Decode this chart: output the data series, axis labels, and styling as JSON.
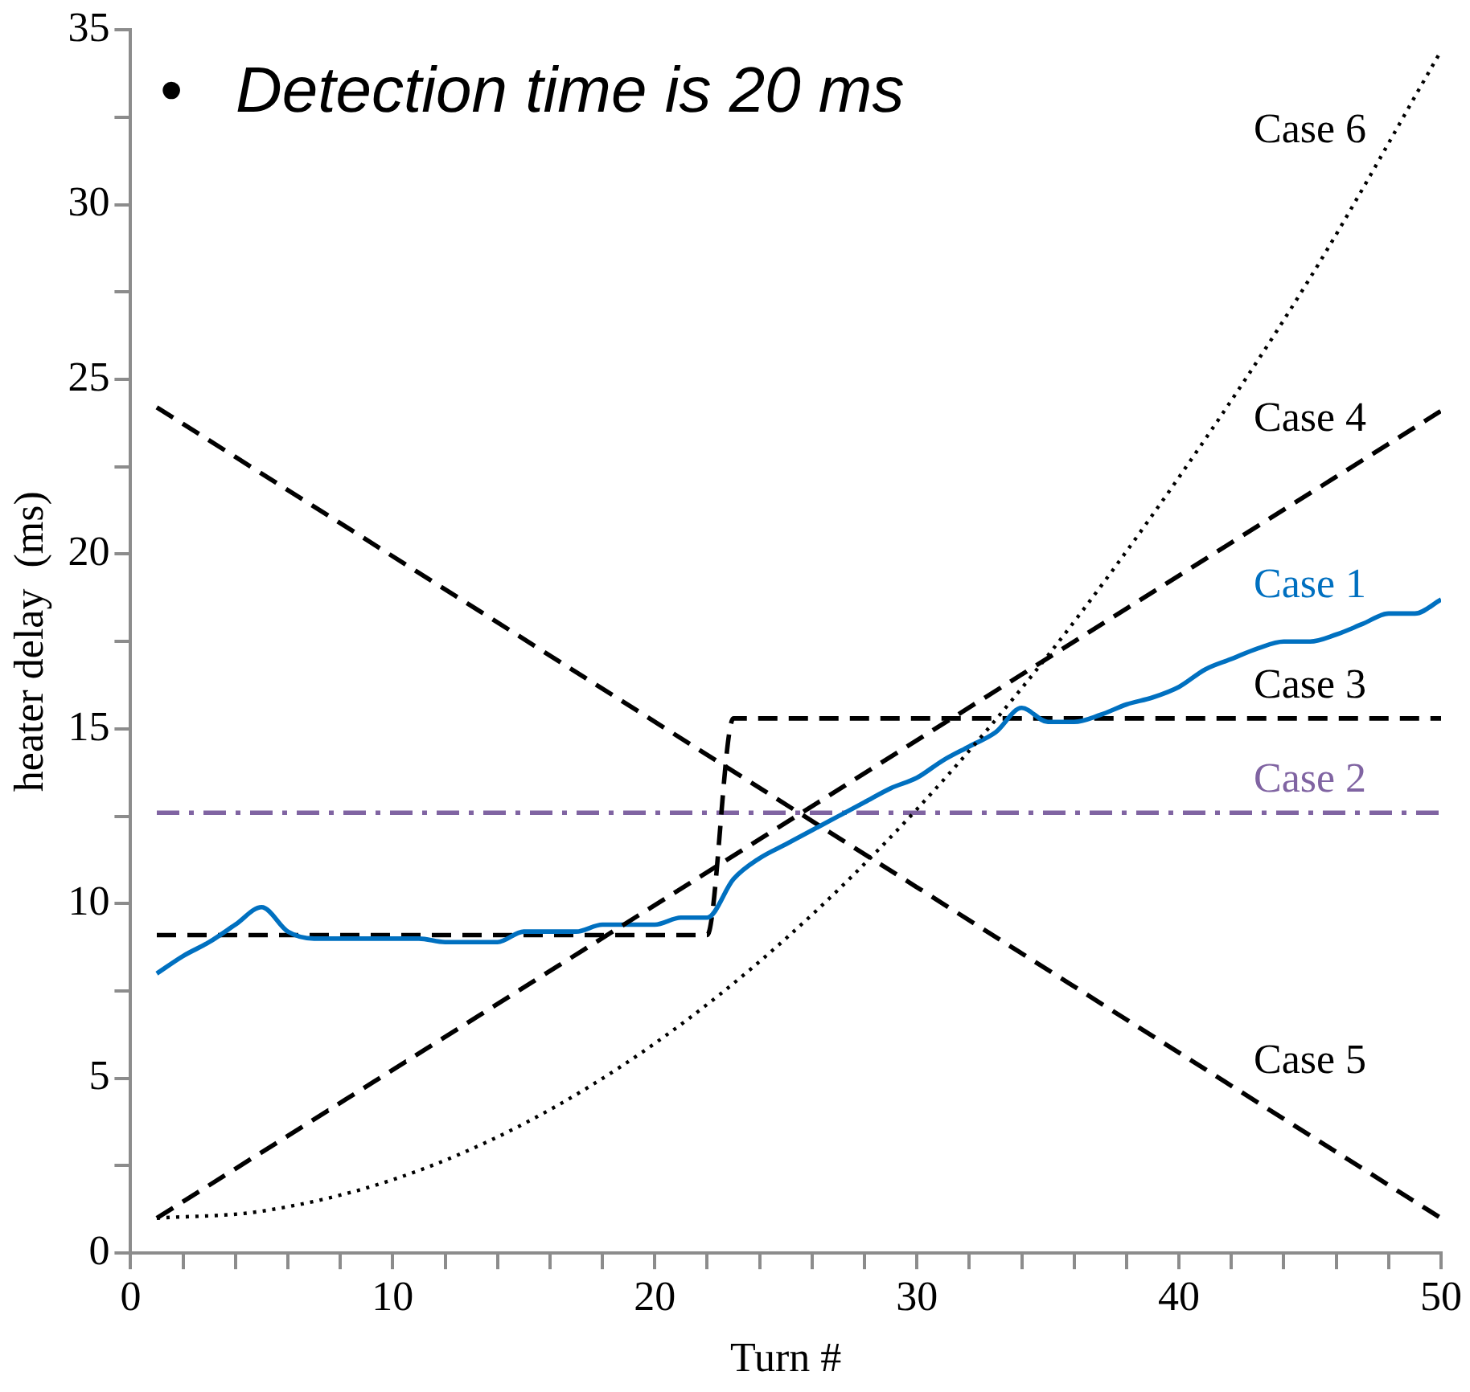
{
  "chart_data": {
    "type": "line",
    "xlabel": "Turn #",
    "ylabel": "heater delay  (ms)",
    "annotations": [
      "•   Detection time is 20 ms"
    ],
    "xlim": [
      0,
      50
    ],
    "xticks": [
      0,
      {
        "value": 2,
        "label": null
      },
      {
        "value": 4,
        "label": null
      },
      {
        "value": 6,
        "label": null
      },
      {
        "value": 8,
        "label": null
      },
      10,
      {
        "value": 12,
        "label": null
      },
      {
        "value": 14,
        "label": null
      },
      {
        "value": 16,
        "label": null
      },
      {
        "value": 18,
        "label": null
      },
      20,
      {
        "value": 22,
        "label": null
      },
      {
        "value": 24,
        "label": null
      },
      {
        "value": 26,
        "label": null
      },
      {
        "value": 28,
        "label": null
      },
      30,
      {
        "value": 32,
        "label": null
      },
      {
        "value": 34,
        "label": null
      },
      {
        "value": 36,
        "label": null
      },
      {
        "value": 38,
        "label": null
      },
      40,
      {
        "value": 42,
        "label": null
      },
      {
        "value": 44,
        "label": null
      },
      {
        "value": 46,
        "label": null
      },
      {
        "value": 48,
        "label": null
      },
      50
    ],
    "ylim": [
      0,
      35
    ],
    "yticks": [
      0,
      {
        "value": 2.5,
        "label": null
      },
      5,
      {
        "value": 7.5,
        "label": null
      },
      10,
      {
        "value": 12.5,
        "label": null
      },
      15,
      {
        "value": 17.5,
        "label": null
      },
      20,
      {
        "value": 22.5,
        "label": null
      },
      25,
      {
        "value": 27.5,
        "label": null
      },
      30,
      {
        "value": 32.5,
        "label": null
      },
      35
    ],
    "grid": false,
    "legend": false,
    "marker": "none",
    "series": [
      {
        "name": "Case 6",
        "color": "#000000",
        "line_style": "dotted",
        "x": [
          1,
          5,
          10,
          15,
          20,
          25,
          30,
          35,
          40,
          45,
          50
        ],
        "values": [
          1,
          1.2,
          2.1,
          3.7,
          6.0,
          9.0,
          12.7,
          17.1,
          22.2,
          27.9,
          34.4
        ]
      },
      {
        "name": "Case 4",
        "color": "#000000",
        "line_style": "dashed",
        "x": [
          1,
          50
        ],
        "values": [
          1,
          24.1
        ]
      },
      {
        "name": "Case 1",
        "color": "#0070c0",
        "line_style": "solid",
        "x": [
          1,
          2,
          3,
          4,
          5,
          6,
          7,
          8,
          9,
          10,
          11,
          12,
          13,
          14,
          15,
          16,
          17,
          18,
          19,
          20,
          21,
          22,
          23,
          24,
          25,
          26,
          27,
          28,
          29,
          30,
          31,
          32,
          33,
          34,
          35,
          36,
          37,
          38,
          39,
          40,
          41,
          42,
          43,
          44,
          45,
          46,
          47,
          48,
          49,
          50
        ],
        "values": [
          8.0,
          8.5,
          8.9,
          9.4,
          9.9,
          9.2,
          9.0,
          9.0,
          9.0,
          9.0,
          9.0,
          8.9,
          8.9,
          8.9,
          9.2,
          9.2,
          9.2,
          9.4,
          9.4,
          9.4,
          9.6,
          9.6,
          10.7,
          11.3,
          11.7,
          12.1,
          12.5,
          12.9,
          13.3,
          13.6,
          14.1,
          14.5,
          14.9,
          15.6,
          15.2,
          15.2,
          15.4,
          15.7,
          15.9,
          16.2,
          16.7,
          17.0,
          17.3,
          17.5,
          17.5,
          17.7,
          18.0,
          18.3,
          18.3,
          18.7
        ]
      },
      {
        "name": "Case 3",
        "color": "#000000",
        "line_style": "dashed",
        "x": [
          1,
          22,
          23,
          50
        ],
        "values": [
          9.1,
          9.1,
          15.3,
          15.3
        ]
      },
      {
        "name": "Case 2",
        "color": "#8064a2",
        "line_style": "dashdot",
        "x": [
          1,
          50
        ],
        "values": [
          12.6,
          12.6
        ]
      },
      {
        "name": "Case 5",
        "color": "#000000",
        "line_style": "dashed",
        "x": [
          1,
          50
        ],
        "values": [
          24.2,
          1
        ]
      }
    ]
  }
}
